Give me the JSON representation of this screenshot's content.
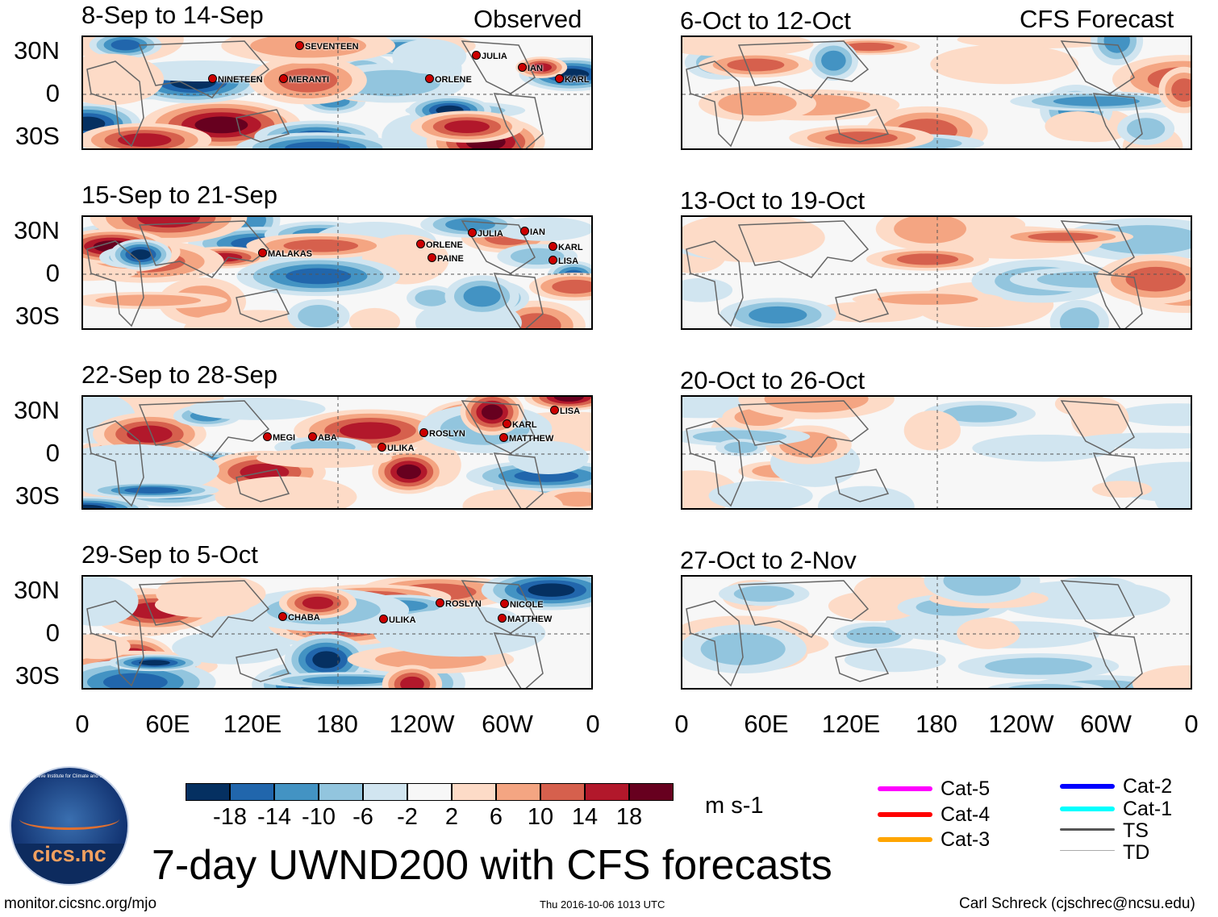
{
  "headers": {
    "observed": "Observed",
    "forecast": "CFS Forecast"
  },
  "panels": {
    "observed": [
      {
        "title": "8-Sep to 14-Sep"
      },
      {
        "title": "15-Sep to 21-Sep"
      },
      {
        "title": "22-Sep to 28-Sep"
      },
      {
        "title": "29-Sep to 5-Oct"
      }
    ],
    "forecast": [
      {
        "title": "6-Oct to 12-Oct"
      },
      {
        "title": "13-Oct to 19-Oct"
      },
      {
        "title": "20-Oct to 26-Oct"
      },
      {
        "title": "27-Oct to 2-Nov"
      }
    ]
  },
  "storms": {
    "r1": [
      "SEVENTEEN",
      "NINETEEN",
      "MERANTI",
      "ORLENE",
      "JULIA",
      "IAN",
      "KARL"
    ],
    "r2": [
      "MALAKAS",
      "ORLENE",
      "PAINE",
      "JULIA",
      "IAN",
      "KARL",
      "LISA"
    ],
    "r3": [
      "MEGI",
      "ABA",
      "ULIKA",
      "ROSLYN",
      "KARL",
      "MATTHEW",
      "LISA"
    ],
    "r4": [
      "CHABA",
      "ULIKA",
      "ROSLYN",
      "NICOLE",
      "MATTHEW"
    ]
  },
  "y_ticks": [
    "30N",
    "0",
    "30S"
  ],
  "x_ticks": [
    "0",
    "60E",
    "120E",
    "180",
    "120W",
    "60W",
    "0"
  ],
  "colorbar": {
    "colors": [
      "#053061",
      "#2166ac",
      "#4393c3",
      "#92c5de",
      "#d1e5f0",
      "#f7f7f7",
      "#fddbc7",
      "#f4a582",
      "#d6604d",
      "#b2182b",
      "#67001f"
    ],
    "labels": [
      "-18",
      "-14",
      "-10",
      "-6",
      "-2",
      "2",
      "6",
      "10",
      "14",
      "18"
    ],
    "units": "m s-1"
  },
  "legend": [
    {
      "label": "Cat-5",
      "color": "#ff00ff"
    },
    {
      "label": "Cat-4",
      "color": "#ff0000"
    },
    {
      "label": "Cat-3",
      "color": "#ffa500"
    },
    {
      "label": "Cat-2",
      "color": "#0000ff"
    },
    {
      "label": "Cat-1",
      "color": "#00ffff"
    },
    {
      "label": "TS",
      "color": "#555555"
    },
    {
      "label": "TD",
      "color": "#aaaaaa"
    }
  ],
  "logo": {
    "text": "cics.nc",
    "ring": "Cooperative Institute for Climate and Satellites"
  },
  "title": "7-day UWND200 with CFS forecasts",
  "footer": {
    "url": "monitor.cicsnc.org/mjo",
    "timestamp": "Thu 2016-10-06 1013 UTC",
    "credit": "Carl Schreck (cjschrec@ncsu.edu)"
  }
}
